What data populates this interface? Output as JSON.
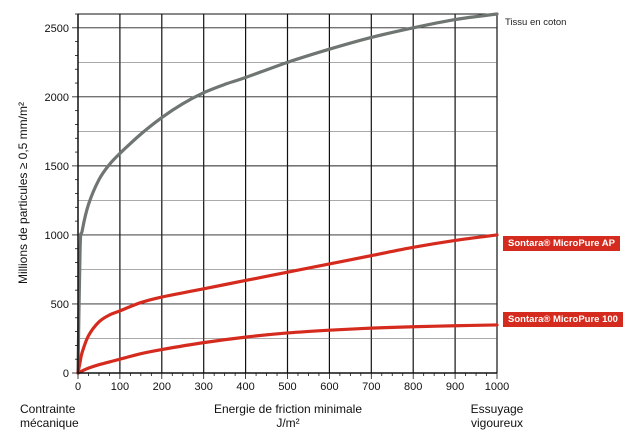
{
  "chart_data": {
    "type": "line",
    "title": "",
    "ylabel": "Millions de particules ≥ 0,5 mm/m²",
    "xlabel_left": [
      "Contrainte",
      "mécanique"
    ],
    "xlabel_center": [
      "Energie de friction minimale",
      "J/m²"
    ],
    "xlabel_right": [
      "Essuyage",
      "vigoureux"
    ],
    "xlim": [
      0,
      1000
    ],
    "ylim": [
      0,
      2600
    ],
    "x_ticks": [
      0,
      100,
      200,
      300,
      400,
      500,
      600,
      700,
      800,
      900,
      1000
    ],
    "y_ticks": [
      0,
      500,
      1000,
      1500,
      2000,
      2500
    ],
    "grid": true,
    "series": [
      {
        "name": "Tissu en coton",
        "color": "#6f7570",
        "x": [
          0,
          5,
          10,
          25,
          50,
          75,
          100,
          150,
          200,
          250,
          300,
          350,
          400,
          500,
          600,
          700,
          800,
          900,
          1000
        ],
        "y": [
          0,
          900,
          1030,
          1220,
          1400,
          1510,
          1590,
          1730,
          1850,
          1950,
          2030,
          2090,
          2140,
          2250,
          2345,
          2430,
          2500,
          2560,
          2600
        ]
      },
      {
        "name": "Sontara® MicroPure AP",
        "color": "#d52b1e",
        "x": [
          0,
          5,
          10,
          25,
          50,
          75,
          100,
          150,
          200,
          300,
          400,
          500,
          600,
          700,
          800,
          900,
          1000
        ],
        "y": [
          0,
          80,
          150,
          270,
          370,
          420,
          450,
          510,
          550,
          610,
          670,
          730,
          790,
          850,
          910,
          960,
          1000
        ]
      },
      {
        "name": "Sontara® MicroPure 100",
        "color": "#d52b1e",
        "x": [
          0,
          10,
          25,
          50,
          75,
          100,
          150,
          200,
          300,
          400,
          500,
          600,
          700,
          800,
          900,
          1000
        ],
        "y": [
          0,
          15,
          35,
          60,
          80,
          100,
          140,
          170,
          220,
          260,
          290,
          310,
          325,
          335,
          342,
          348
        ]
      }
    ]
  }
}
